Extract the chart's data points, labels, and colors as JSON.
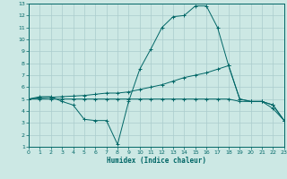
{
  "xlabel": "Humidex (Indice chaleur)",
  "bg_color": "#cce8e4",
  "grid_color": "#aacccc",
  "line_color": "#006666",
  "xlim": [
    0,
    23
  ],
  "ylim": [
    1,
    13
  ],
  "xticks": [
    0,
    1,
    2,
    3,
    4,
    5,
    6,
    7,
    8,
    9,
    10,
    11,
    12,
    13,
    14,
    15,
    16,
    17,
    18,
    19,
    20,
    21,
    22,
    23
  ],
  "yticks": [
    1,
    2,
    3,
    4,
    5,
    6,
    7,
    8,
    9,
    10,
    11,
    12,
    13
  ],
  "line1_x": [
    0,
    1,
    2,
    3,
    4,
    5,
    6,
    7,
    8,
    9,
    10,
    11,
    12,
    13,
    14,
    15,
    16,
    17,
    18,
    19,
    20,
    21,
    22,
    23
  ],
  "line1_y": [
    5.0,
    5.2,
    5.2,
    4.8,
    4.5,
    3.3,
    3.2,
    3.2,
    1.2,
    4.8,
    7.5,
    9.2,
    11.0,
    11.9,
    12.0,
    12.8,
    12.8,
    11.0,
    7.8,
    5.0,
    4.8,
    4.8,
    4.2,
    3.2
  ],
  "line2_x": [
    0,
    1,
    2,
    3,
    4,
    5,
    6,
    7,
    8,
    9,
    10,
    11,
    12,
    13,
    14,
    15,
    16,
    17,
    18,
    19,
    20,
    21,
    22,
    23
  ],
  "line2_y": [
    5.0,
    5.1,
    5.15,
    5.2,
    5.25,
    5.3,
    5.4,
    5.5,
    5.5,
    5.6,
    5.8,
    6.0,
    6.2,
    6.5,
    6.8,
    7.0,
    7.2,
    7.5,
    7.8,
    5.0,
    4.8,
    4.8,
    4.5,
    3.2
  ],
  "line3_x": [
    0,
    1,
    2,
    3,
    4,
    5,
    6,
    7,
    8,
    9,
    10,
    11,
    12,
    13,
    14,
    15,
    16,
    17,
    18,
    19,
    20,
    21,
    22,
    23
  ],
  "line3_y": [
    5.0,
    5.0,
    5.0,
    5.0,
    5.0,
    5.0,
    5.0,
    5.0,
    5.0,
    5.0,
    5.0,
    5.0,
    5.0,
    5.0,
    5.0,
    5.0,
    5.0,
    5.0,
    5.0,
    4.8,
    4.8,
    4.8,
    4.5,
    3.2
  ]
}
